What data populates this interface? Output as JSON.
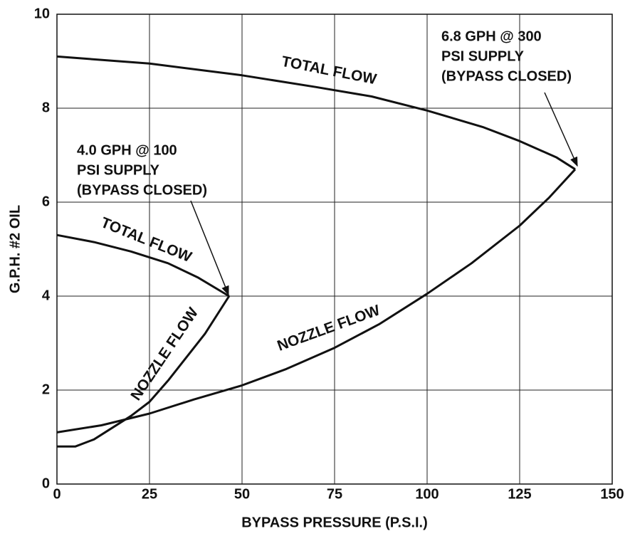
{
  "chart_data": {
    "type": "line",
    "xlabel": "BYPASS PRESSURE (P.S.I.)",
    "ylabel": "G.P.H. #2 OIL",
    "xlim": [
      0,
      150
    ],
    "xticks": [
      0,
      25,
      50,
      75,
      100,
      125,
      150
    ],
    "ylim": [
      0,
      10
    ],
    "yticks": [
      0,
      2,
      4,
      6,
      8,
      10
    ],
    "grid": true,
    "series": [
      {
        "name": "TOTAL FLOW",
        "color": "#111111",
        "x": [
          0,
          25,
          50,
          70,
          85,
          100,
          115,
          125,
          135,
          140
        ],
        "values": [
          9.1,
          8.95,
          8.7,
          8.45,
          8.25,
          7.95,
          7.6,
          7.3,
          6.95,
          6.7
        ]
      },
      {
        "name": "NOZZLE FLOW",
        "color": "#111111",
        "x": [
          0,
          12,
          25,
          37,
          50,
          62,
          75,
          87,
          100,
          112,
          125,
          133,
          140
        ],
        "values": [
          1.1,
          1.25,
          1.5,
          1.8,
          2.1,
          2.45,
          2.9,
          3.4,
          4.05,
          4.7,
          5.5,
          6.1,
          6.7
        ]
      },
      {
        "name": "TOTAL FLOW",
        "color": "#111111",
        "x": [
          0,
          10,
          20,
          30,
          38,
          46.5
        ],
        "values": [
          5.3,
          5.15,
          4.95,
          4.7,
          4.4,
          4.0
        ]
      },
      {
        "name": "NOZZLE FLOW",
        "color": "#111111",
        "x": [
          0,
          5,
          10,
          15,
          20,
          25,
          30,
          35,
          40,
          46.5
        ],
        "values": [
          0.8,
          0.8,
          0.95,
          1.2,
          1.45,
          1.75,
          2.2,
          2.7,
          3.2,
          4.0
        ]
      }
    ],
    "annotations": [
      [
        "4.0 GPH @ 100",
        "PSI SUPPLY",
        "(BYPASS CLOSED)"
      ],
      [
        "6.8 GPH @ 300",
        "PSI SUPPLY",
        "(BYPASS CLOSED)"
      ]
    ]
  }
}
